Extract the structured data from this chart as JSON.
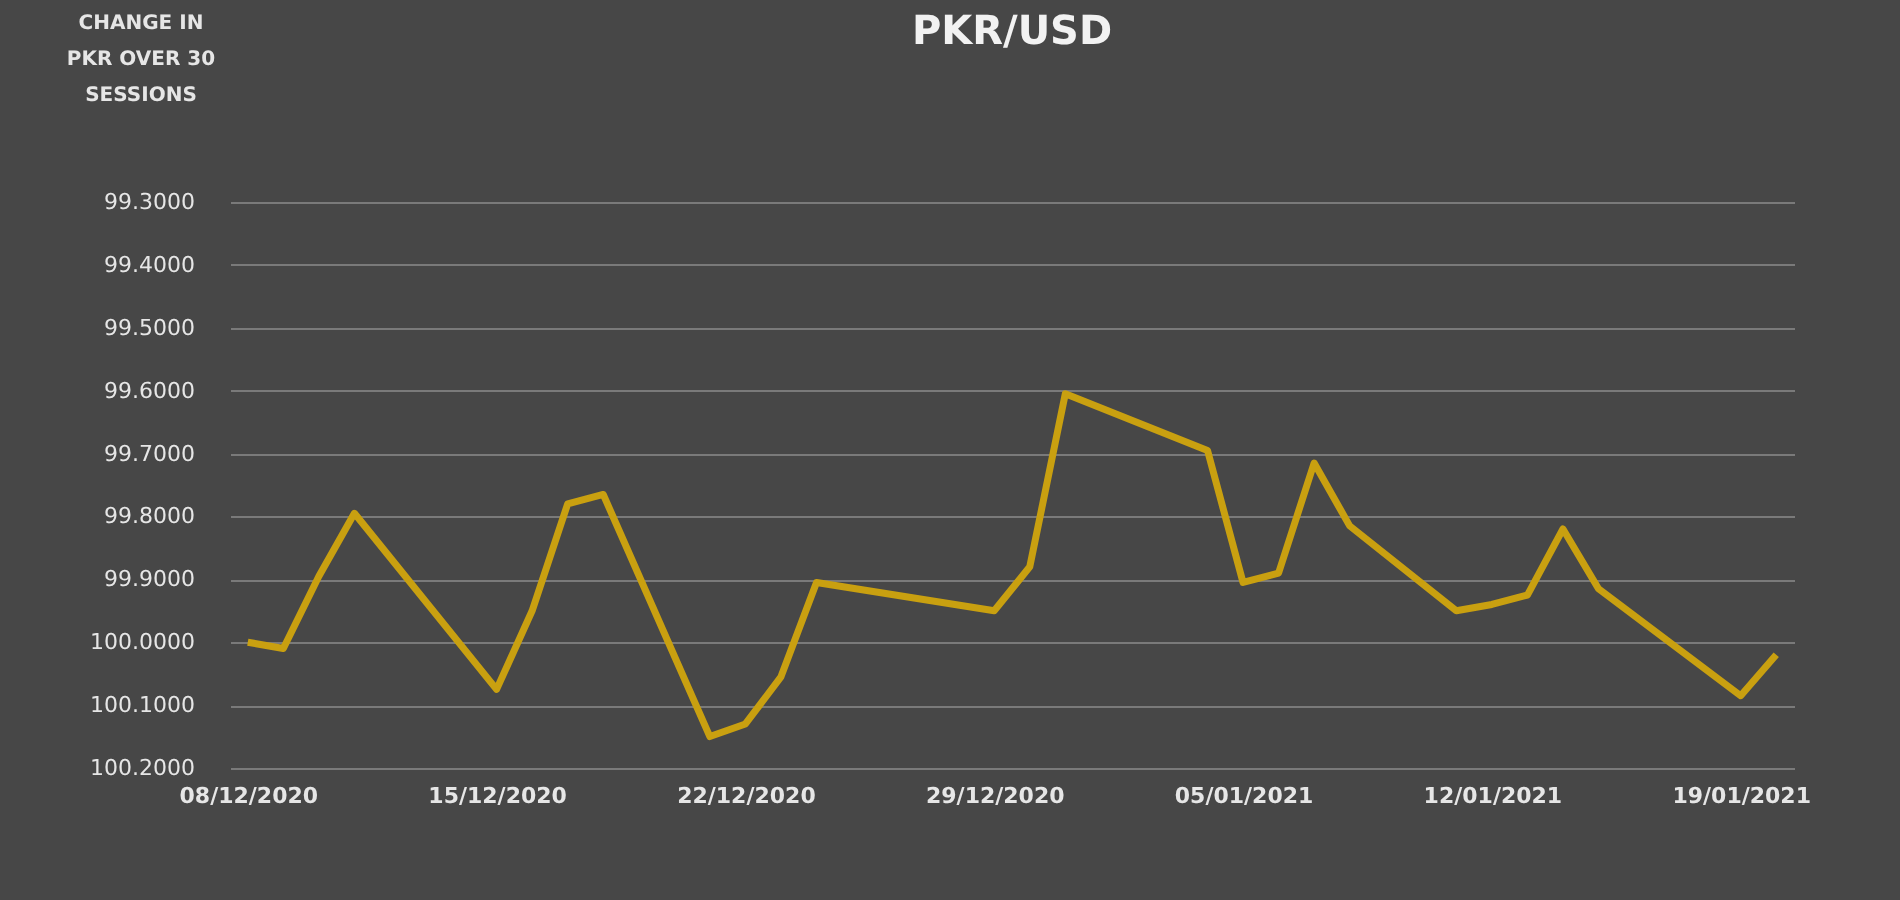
{
  "chart_data": {
    "type": "line",
    "title": "PKR/USD",
    "ylabel": "CHANGE IN PKR OVER 30 SESSIONS",
    "x": [
      "2020-12-08",
      "2020-12-09",
      "2020-12-10",
      "2020-12-11",
      "2020-12-15",
      "2020-12-16",
      "2020-12-17",
      "2020-12-18",
      "2020-12-21",
      "2020-12-22",
      "2020-12-23",
      "2020-12-24",
      "2020-12-29",
      "2020-12-30",
      "2020-12-31",
      "2021-01-04",
      "2021-01-05",
      "2021-01-06",
      "2021-01-07",
      "2021-01-08",
      "2021-01-11",
      "2021-01-12",
      "2021-01-13",
      "2021-01-14",
      "2021-01-15",
      "2021-01-19",
      "2021-01-20"
    ],
    "series": [
      {
        "color": "#c9a010",
        "values": [
          100.0,
          100.01,
          99.895,
          99.795,
          100.075,
          99.95,
          99.78,
          99.765,
          100.15,
          100.13,
          100.055,
          99.905,
          99.95,
          99.88,
          99.605,
          99.695,
          99.905,
          99.89,
          99.715,
          99.815,
          99.95,
          99.94,
          99.925,
          99.82,
          99.915,
          100.085,
          100.02
        ]
      }
    ],
    "xlim": [
      "2020-12-07T12:00",
      "2021-01-20T12:00"
    ],
    "xticks": [
      {
        "value": "2020-12-08",
        "label": "08/12/2020"
      },
      {
        "value": "2020-12-15",
        "label": "15/12/2020"
      },
      {
        "value": "2020-12-22",
        "label": "22/12/2020"
      },
      {
        "value": "2020-12-29",
        "label": "29/12/2020"
      },
      {
        "value": "2021-01-05",
        "label": "05/01/2021"
      },
      {
        "value": "2021-01-12",
        "label": "12/01/2021"
      },
      {
        "value": "2021-01-19",
        "label": "19/01/2021"
      }
    ],
    "ylim": [
      100.2,
      99.3
    ],
    "yticks": [
      {
        "value": 99.3,
        "label": "99.3000"
      },
      {
        "value": 99.4,
        "label": "99.4000"
      },
      {
        "value": 99.5,
        "label": "99.5000"
      },
      {
        "value": 99.6,
        "label": "99.6000"
      },
      {
        "value": 99.7,
        "label": "99.7000"
      },
      {
        "value": 99.8,
        "label": "99.8000"
      },
      {
        "value": 99.9,
        "label": "99.9000"
      },
      {
        "value": 100.0,
        "label": "100.0000"
      },
      {
        "value": 100.1,
        "label": "100.1000"
      },
      {
        "value": 100.2,
        "label": "100.2000"
      }
    ],
    "grid": "y",
    "line_style": "solid",
    "marker": "none"
  }
}
